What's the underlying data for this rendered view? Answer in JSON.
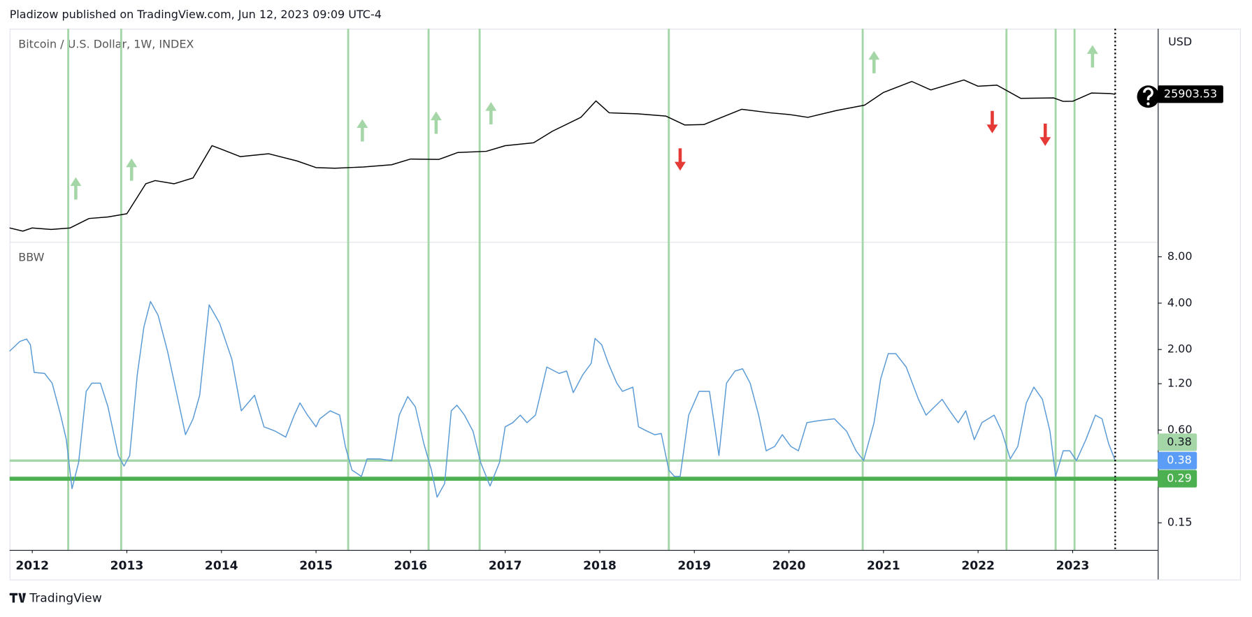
{
  "header": "Pladizow published on TradingView.com, Jun 12, 2023 09:09 UTC-4",
  "footer": "TradingView",
  "chart_data": [
    {
      "type": "line",
      "title": "Bitcoin / U.S. Dollar, 1W, INDEX",
      "y_axis_label": "USD",
      "log_scale": true,
      "color": "#000000",
      "xlim": [
        2011.76,
        2023.9
      ],
      "ylim": [
        2.28,
        1630000
      ],
      "x": [
        2011.76,
        2011.9,
        2012.0,
        2012.2,
        2012.4,
        2012.6,
        2012.8,
        2013.0,
        2013.2,
        2013.3,
        2013.5,
        2013.7,
        2013.9,
        2014.0,
        2014.2,
        2014.5,
        2014.8,
        2015.0,
        2015.2,
        2015.5,
        2015.8,
        2016.0,
        2016.3,
        2016.5,
        2016.8,
        2017.0,
        2017.3,
        2017.5,
        2017.8,
        2017.96,
        2018.1,
        2018.4,
        2018.7,
        2018.9,
        2019.1,
        2019.5,
        2019.8,
        2020.0,
        2020.2,
        2020.5,
        2020.8,
        2021.0,
        2021.3,
        2021.5,
        2021.85,
        2022.0,
        2022.2,
        2022.45,
        2022.8,
        2022.9,
        2023.0,
        2023.2,
        2023.4,
        2023.45
      ],
      "values": [
        5.5,
        4.5,
        5.5,
        5,
        5.5,
        10,
        11,
        13.5,
        90,
        110,
        90,
        130,
        1000,
        800,
        500,
        600,
        380,
        250,
        240,
        260,
        300,
        430,
        420,
        650,
        700,
        1000,
        1200,
        2500,
        6000,
        17000,
        8000,
        7500,
        6500,
        3700,
        3800,
        10000,
        8000,
        7200,
        6000,
        9200,
        13000,
        29000,
        58000,
        34000,
        64000,
        43000,
        46000,
        20000,
        20500,
        16500,
        16600,
        28000,
        27000,
        25903.53
      ],
      "vlines": [
        2012.38,
        2012.94,
        2015.34,
        2016.19,
        2016.73,
        2018.73,
        2020.78,
        2022.3,
        2022.82,
        2023.02
      ],
      "vline_color": "#a5d6a7",
      "marker_line": 2023.45,
      "arrows": [
        {
          "x": 2012.46,
          "direction": "up"
        },
        {
          "x": 2013.05,
          "direction": "up"
        },
        {
          "x": 2015.49,
          "direction": "up"
        },
        {
          "x": 2016.27,
          "direction": "up"
        },
        {
          "x": 2016.85,
          "direction": "up"
        },
        {
          "x": 2018.85,
          "direction": "down"
        },
        {
          "x": 2020.9,
          "direction": "up"
        },
        {
          "x": 2022.15,
          "direction": "down"
        },
        {
          "x": 2022.71,
          "direction": "down"
        },
        {
          "x": 2023.21,
          "direction": "up"
        }
      ],
      "arrow_colors": {
        "up": "#a5d6a7",
        "down": "#e53935"
      }
    },
    {
      "type": "line",
      "title": "BBW",
      "log_scale": true,
      "color": "#5b9bd5",
      "xlim": [
        2011.76,
        2023.9
      ],
      "ylim": [
        0.1,
        10
      ],
      "xticks": [
        2012,
        2013,
        2014,
        2015,
        2016,
        2017,
        2018,
        2019,
        2020,
        2021,
        2022,
        2023
      ],
      "yticks": [
        {
          "value": 8,
          "label": "8.00"
        },
        {
          "value": 4,
          "label": "4.00"
        },
        {
          "value": 2,
          "label": "2.00"
        },
        {
          "value": 1.2,
          "label": "1.20"
        },
        {
          "value": 0.6,
          "label": "0.60"
        },
        {
          "value": 0.15,
          "label": "0.15"
        }
      ],
      "x": [
        2011.76,
        2011.87,
        2011.94,
        2011.98,
        2012.02,
        2012.13,
        2012.21,
        2012.3,
        2012.36,
        2012.42,
        2012.49,
        2012.57,
        2012.63,
        2012.72,
        2012.8,
        2012.91,
        2012.97,
        2013.03,
        2013.11,
        2013.18,
        2013.25,
        2013.33,
        2013.43,
        2013.54,
        2013.62,
        2013.7,
        2013.77,
        2013.87,
        2013.98,
        2014.11,
        2014.21,
        2014.35,
        2014.45,
        2014.57,
        2014.68,
        2014.77,
        2014.83,
        2014.91,
        2015.0,
        2015.04,
        2015.15,
        2015.25,
        2015.31,
        2015.38,
        2015.48,
        2015.54,
        2015.67,
        2015.8,
        2015.88,
        2015.97,
        2016.05,
        2016.14,
        2016.22,
        2016.28,
        2016.36,
        2016.43,
        2016.49,
        2016.57,
        2016.66,
        2016.74,
        2016.84,
        2016.94,
        2017.0,
        2017.08,
        2017.16,
        2017.23,
        2017.32,
        2017.38,
        2017.44,
        2017.57,
        2017.65,
        2017.72,
        2017.82,
        2017.91,
        2017.95,
        2018.02,
        2018.09,
        2018.18,
        2018.24,
        2018.35,
        2018.41,
        2018.5,
        2018.58,
        2018.65,
        2018.73,
        2018.79,
        2018.85,
        2018.94,
        2019.05,
        2019.16,
        2019.26,
        2019.34,
        2019.43,
        2019.51,
        2019.59,
        2019.68,
        2019.76,
        2019.85,
        2019.93,
        2020.02,
        2020.1,
        2020.19,
        2020.31,
        2020.48,
        2020.61,
        2020.71,
        2020.79,
        2020.9,
        2020.97,
        2021.05,
        2021.13,
        2021.24,
        2021.37,
        2021.45,
        2021.54,
        2021.62,
        2021.7,
        2021.79,
        2021.87,
        2021.96,
        2022.04,
        2022.17,
        2022.25,
        2022.34,
        2022.42,
        2022.51,
        2022.59,
        2022.68,
        2022.76,
        2022.82,
        2022.9,
        2022.97,
        2023.04,
        2023.14,
        2023.24,
        2023.31,
        2023.38,
        2023.45
      ],
      "values": [
        1.95,
        2.26,
        2.34,
        2.15,
        1.42,
        1.4,
        1.21,
        0.75,
        0.52,
        0.25,
        0.37,
        1.07,
        1.21,
        1.21,
        0.85,
        0.41,
        0.35,
        0.41,
        1.37,
        2.8,
        4.1,
        3.34,
        1.95,
        0.95,
        0.56,
        0.71,
        1.01,
        3.9,
        2.97,
        1.73,
        0.8,
        1.01,
        0.63,
        0.59,
        0.54,
        0.75,
        0.9,
        0.75,
        0.63,
        0.71,
        0.8,
        0.75,
        0.47,
        0.33,
        0.3,
        0.39,
        0.39,
        0.38,
        0.75,
        0.99,
        0.85,
        0.49,
        0.33,
        0.22,
        0.27,
        0.8,
        0.87,
        0.75,
        0.59,
        0.37,
        0.26,
        0.37,
        0.63,
        0.67,
        0.75,
        0.67,
        0.75,
        1.07,
        1.54,
        1.4,
        1.45,
        1.05,
        1.37,
        1.63,
        2.36,
        2.15,
        1.63,
        1.21,
        1.07,
        1.14,
        0.63,
        0.59,
        0.56,
        0.57,
        0.33,
        0.3,
        0.3,
        0.75,
        1.07,
        1.07,
        0.41,
        1.21,
        1.45,
        1.5,
        1.21,
        0.75,
        0.44,
        0.47,
        0.56,
        0.47,
        0.44,
        0.67,
        0.69,
        0.71,
        0.59,
        0.44,
        0.38,
        0.67,
        1.29,
        1.88,
        1.88,
        1.54,
        0.95,
        0.75,
        0.85,
        0.95,
        0.8,
        0.67,
        0.8,
        0.52,
        0.67,
        0.75,
        0.59,
        0.39,
        0.47,
        0.9,
        1.14,
        0.95,
        0.59,
        0.3,
        0.44,
        0.44,
        0.38,
        0.52,
        0.75,
        0.71,
        0.49,
        0.38
      ],
      "last_value_color": "#5b9cf6",
      "levels": [
        {
          "value": 0.38,
          "color": "#a5d6a7"
        },
        {
          "value": 0.29,
          "color": "#4caf50"
        }
      ]
    }
  ]
}
